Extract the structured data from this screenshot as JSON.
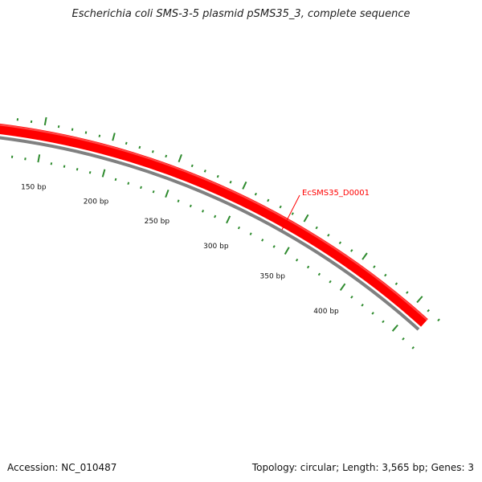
{
  "title": "Escherichia coli SMS-3-5 plasmid pSMS35_3, complete sequence",
  "accession_text": "Accession: NC_010487",
  "summary_text": "Topology: circular; Length: 3,565 bp; Genes: 3",
  "feature": {
    "label": "EcSMS35_D0001",
    "color": "#ff0000"
  },
  "scale": {
    "tick_color": "#2e8b2e",
    "backbone_color": "#808080",
    "labels": [
      {
        "bp": 150,
        "text": "150 bp"
      },
      {
        "bp": 200,
        "text": "200 bp"
      },
      {
        "bp": 250,
        "text": "250 bp"
      },
      {
        "bp": 300,
        "text": "300 bp"
      },
      {
        "bp": 350,
        "text": "350 bp"
      },
      {
        "bp": 400,
        "text": "400 bp"
      }
    ]
  }
}
